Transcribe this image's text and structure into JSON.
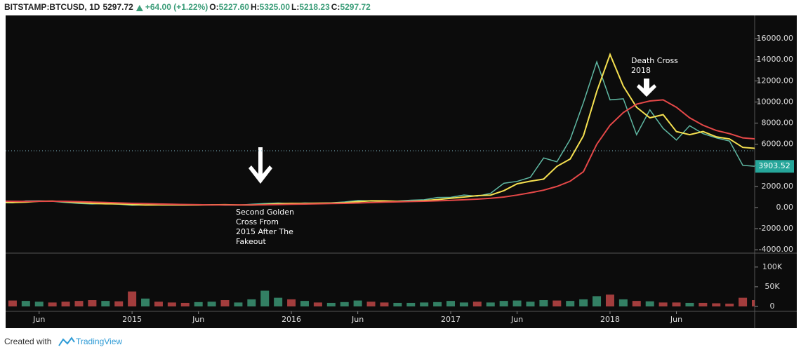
{
  "chart_data": {
    "type": "line",
    "symbol": "BITSTAMP:BTCUSD, 1D",
    "last": "5297.72",
    "change": "+64.00 (+1.22%)",
    "ohlc": [
      {
        "label": "O:",
        "value": "5227.60"
      },
      {
        "label": "H:",
        "value": "5325.00"
      },
      {
        "label": "L:",
        "value": "5218.23"
      },
      {
        "label": "C:",
        "value": "5297.72"
      }
    ],
    "annotations": [
      {
        "text": [
          "Second Golden",
          "Cross From",
          "2015 After The",
          "Fakeout"
        ]
      },
      {
        "text": [
          "Death Cross",
          "2018"
        ]
      }
    ],
    "price_label": {
      "value": 3903.52,
      "label": "3903.52"
    },
    "price_line": 5380,
    "footer": [
      "Created with",
      "TradingView"
    ],
    "x": [
      "2014-03",
      "2014-04",
      "2014-05",
      "2014-06",
      "2014-07",
      "2014-08",
      "2014-09",
      "2014-10",
      "2014-11",
      "2014-12",
      "2015-01",
      "2015-02",
      "2015-03",
      "2015-04",
      "2015-05",
      "2015-06",
      "2015-07",
      "2015-08",
      "2015-09",
      "2015-10",
      "2015-11",
      "2015-12",
      "2016-01",
      "2016-02",
      "2016-03",
      "2016-04",
      "2016-05",
      "2016-06",
      "2016-07",
      "2016-08",
      "2016-09",
      "2016-10",
      "2016-11",
      "2016-12",
      "2017-01",
      "2017-02",
      "2017-03",
      "2017-04",
      "2017-05",
      "2017-06",
      "2017-07",
      "2017-08",
      "2017-09",
      "2017-10",
      "2017-11",
      "2017-12",
      "2018-01",
      "2018-02",
      "2018-03",
      "2018-04",
      "2018-05",
      "2018-06",
      "2018-07",
      "2018-08",
      "2018-09",
      "2018-10",
      "2018-11",
      "2018-12"
    ],
    "xlim": [
      "2014-03",
      "2018-12"
    ],
    "xticks": [
      {
        "value": "2014-06",
        "label": "Jun"
      },
      {
        "value": "2015-01",
        "label": "2015"
      },
      {
        "value": "2015-06",
        "label": "Jun"
      },
      {
        "value": "2016-01",
        "label": "2016"
      },
      {
        "value": "2016-06",
        "label": "Jun"
      },
      {
        "value": "2017-01",
        "label": "2017"
      },
      {
        "value": "2017-06",
        "label": "Jun"
      },
      {
        "value": "2018-01",
        "label": "2018"
      },
      {
        "value": "2018-06",
        "label": "Jun"
      }
    ],
    "series": [
      {
        "name": "Price",
        "color": "#5fb8a3",
        "values": [
          460,
          450,
          630,
          640,
          590,
          480,
          390,
          340,
          380,
          320,
          220,
          255,
          245,
          235,
          230,
          265,
          285,
          230,
          236,
          315,
          380,
          430,
          370,
          435,
          415,
          450,
          530,
          670,
          625,
          575,
          610,
          700,
          740,
          960,
          970,
          1190,
          1080,
          1350,
          2300,
          2480,
          2870,
          4700,
          4340,
          6450,
          9950,
          13800,
          10200,
          10300,
          6900,
          9250,
          7500,
          6400,
          7750,
          7000,
          6600,
          6300,
          4000,
          3900
        ]
      },
      {
        "name": "MA 50",
        "color": "#f5e050",
        "values": [
          520,
          480,
          520,
          600,
          620,
          560,
          470,
          400,
          360,
          350,
          290,
          240,
          250,
          245,
          238,
          240,
          262,
          270,
          245,
          240,
          290,
          360,
          400,
          395,
          420,
          425,
          460,
          560,
          640,
          630,
          590,
          600,
          660,
          760,
          880,
          1000,
          1130,
          1180,
          1600,
          2250,
          2500,
          2700,
          3900,
          4600,
          6800,
          11000,
          14500,
          11500,
          9500,
          8500,
          8800,
          7200,
          6900,
          7200,
          6700,
          6500,
          5700,
          5600
        ]
      },
      {
        "name": "MA 200",
        "color": "#e54848",
        "values": [
          600,
          590,
          580,
          590,
          600,
          590,
          560,
          520,
          480,
          440,
          400,
          370,
          340,
          310,
          290,
          270,
          255,
          250,
          248,
          250,
          260,
          285,
          310,
          330,
          360,
          380,
          400,
          430,
          470,
          510,
          540,
          570,
          600,
          640,
          680,
          740,
          800,
          880,
          1000,
          1180,
          1400,
          1650,
          2000,
          2500,
          3400,
          6000,
          7800,
          9000,
          9800,
          10100,
          10200,
          9500,
          8500,
          7800,
          7300,
          7000,
          6600,
          6500
        ]
      }
    ],
    "ylim": [
      -4250,
      18200
    ],
    "yticks": [
      {
        "value": -4000,
        "label": "-4000.00"
      },
      {
        "value": -2000,
        "label": "-2000.00"
      },
      {
        "value": 0,
        "label": "0.00"
      },
      {
        "value": 2000,
        "label": "2000.00"
      },
      {
        "value": 4000,
        "label": "4000.00"
      },
      {
        "value": 6000,
        "label": "6000.00"
      },
      {
        "value": 8000,
        "label": "8000.00"
      },
      {
        "value": 10000,
        "label": "10000.00"
      },
      {
        "value": 12000,
        "label": "12000.00"
      },
      {
        "value": 14000,
        "label": "14000.00"
      },
      {
        "value": 16000,
        "label": "16000.00"
      }
    ],
    "volume": {
      "up_color": "#3d9e7a",
      "down_color": "#c94a4a",
      "values": [
        22000,
        15000,
        14000,
        12000,
        10000,
        12000,
        14000,
        16000,
        14000,
        13000,
        38000,
        20000,
        12000,
        10000,
        9000,
        11000,
        12000,
        16000,
        10000,
        18000,
        40000,
        22000,
        18000,
        14000,
        10000,
        9000,
        11000,
        15000,
        12000,
        10000,
        9000,
        9000,
        10000,
        11000,
        14000,
        10000,
        12000,
        10000,
        14000,
        15000,
        12000,
        16000,
        15000,
        14000,
        18000,
        26000,
        30000,
        18000,
        14000,
        13000,
        10000,
        10000,
        9000,
        9000,
        8000,
        7000,
        22000,
        16000
      ],
      "ylim": [
        0,
        130000
      ],
      "yticks": [
        {
          "value": 0,
          "label": "0"
        },
        {
          "value": 50000,
          "label": "50K"
        },
        {
          "value": 100000,
          "label": "100K"
        }
      ]
    }
  }
}
